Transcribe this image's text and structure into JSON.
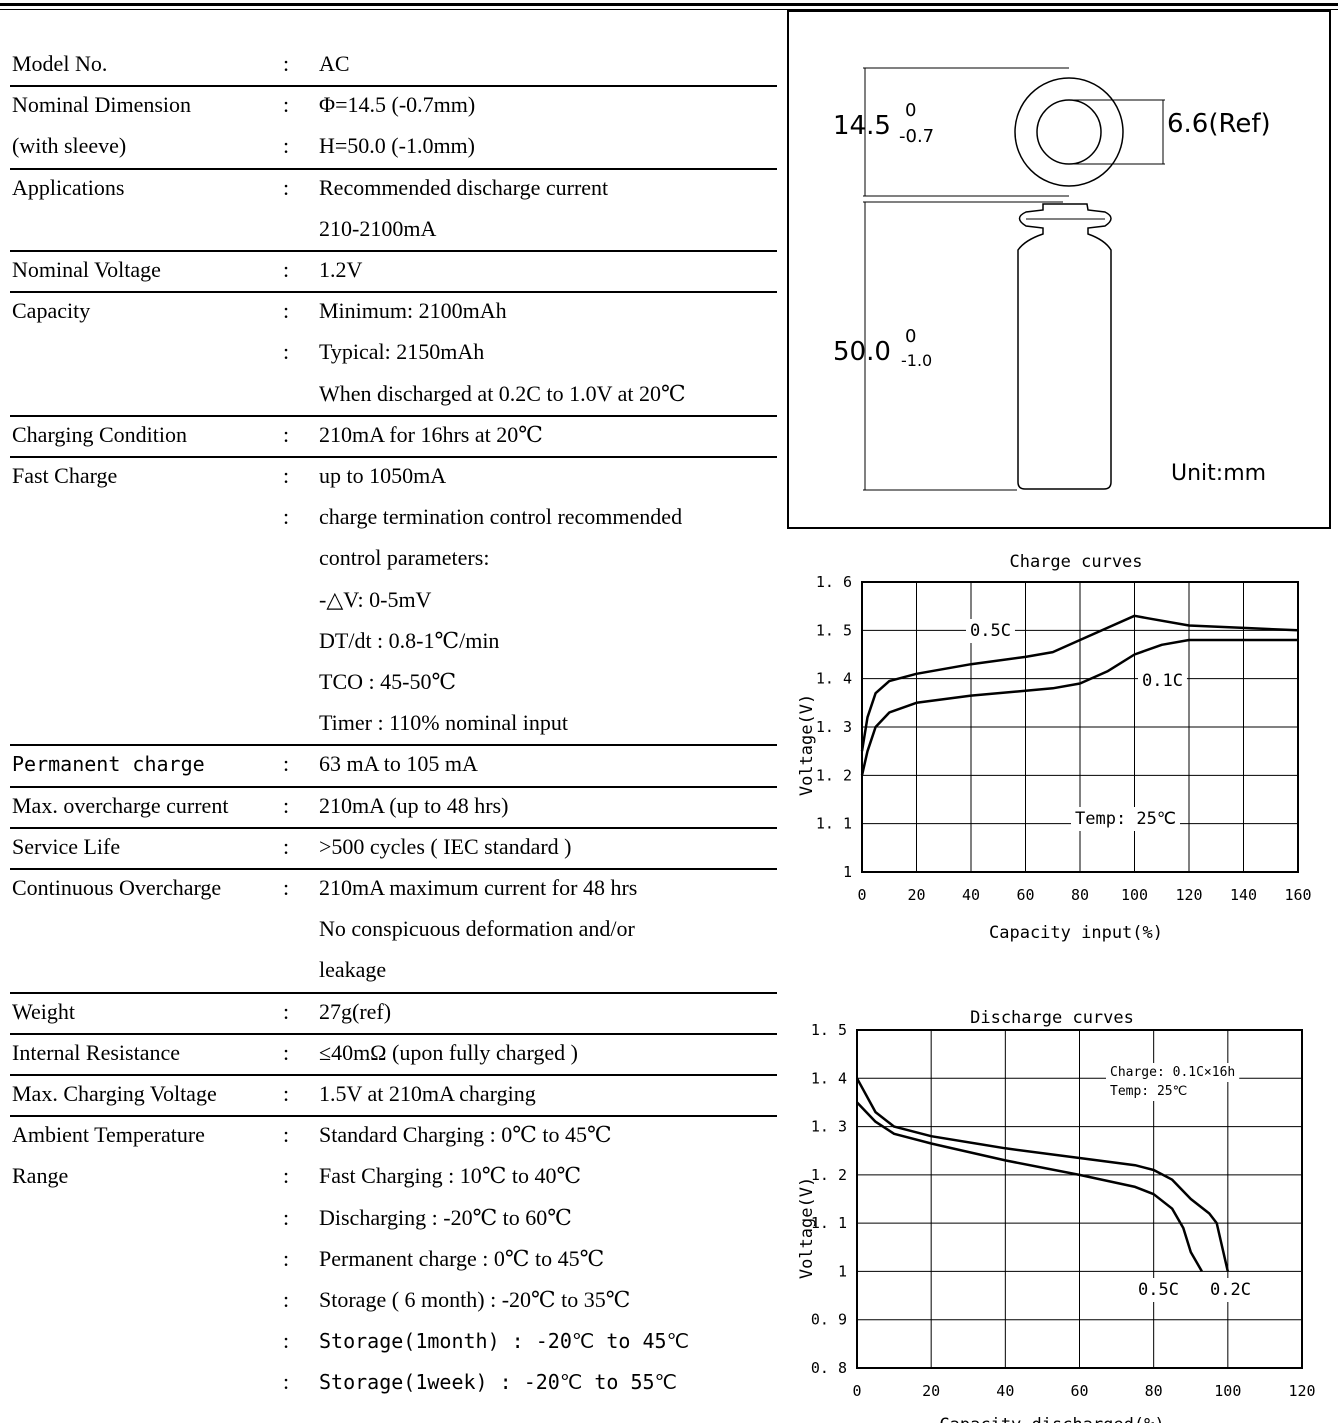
{
  "specs": [
    {
      "label": "Model No.",
      "lines": [
        {
          "colon": ":",
          "text": "AC"
        }
      ]
    },
    {
      "label": "Nominal Dimension",
      "lines": [
        {
          "colon": ":",
          "text": "Φ=14.5 (-0.7mm)"
        }
      ]
    },
    {
      "label": "(with sleeve)",
      "lines": [
        {
          "colon": ":",
          "text": "H=50.0 (-1.0mm)"
        }
      ]
    },
    {
      "label": "Applications",
      "lines": [
        {
          "colon": ":",
          "text": "Recommended discharge current"
        },
        {
          "colon": "",
          "text": "210-2100mA"
        }
      ]
    },
    {
      "label": "Nominal Voltage",
      "lines": [
        {
          "colon": ":",
          "text": "1.2V"
        }
      ]
    },
    {
      "label": "Capacity",
      "lines": [
        {
          "colon": ":",
          "text": "Minimum: 2100mAh"
        },
        {
          "colon": ":",
          "text": "Typical: 2150mAh"
        },
        {
          "colon": "",
          "text": "When discharged at 0.2C to 1.0V at 20℃"
        }
      ]
    },
    {
      "label": "Charging Condition",
      "lines": [
        {
          "colon": ":",
          "text": "210mA for 16hrs at 20℃"
        }
      ]
    },
    {
      "label": "Fast Charge",
      "lines": [
        {
          "colon": ":",
          "text": "up to 1050mA"
        },
        {
          "colon": ":",
          "text": "charge termination control recommended"
        },
        {
          "colon": "",
          "text": "control parameters:"
        },
        {
          "colon": "",
          "text": "-△V: 0-5mV"
        },
        {
          "colon": "",
          "text": "DT/dt : 0.8-1℃/min"
        },
        {
          "colon": "",
          "text": "TCO : 45-50℃"
        },
        {
          "colon": "",
          "text": "Timer : 110% nominal input"
        }
      ]
    },
    {
      "label": "Permanent charge",
      "lines": [
        {
          "colon": ":",
          "text": "63 mA to 105 mA"
        }
      ]
    },
    {
      "label": "Max. overcharge current",
      "lines": [
        {
          "colon": ":",
          "text": "210mA (up to 48 hrs)"
        }
      ]
    },
    {
      "label": "Service Life",
      "lines": [
        {
          "colon": ":",
          "text": ">500 cycles ( IEC standard )"
        }
      ]
    },
    {
      "label": "Continuous Overcharge",
      "lines": [
        {
          "colon": ":",
          "text": "210mA maximum current for 48 hrs"
        },
        {
          "colon": "",
          "text": "No conspicuous deformation and/or"
        },
        {
          "colon": "",
          "text": "leakage"
        }
      ]
    },
    {
      "label": "Weight",
      "lines": [
        {
          "colon": ":",
          "text": "27g(ref)"
        }
      ]
    },
    {
      "label": "Internal Resistance",
      "lines": [
        {
          "colon": ":",
          "text": "≤40mΩ (upon fully charged )"
        }
      ]
    },
    {
      "label": "Max. Charging Voltage",
      "lines": [
        {
          "colon": ":",
          "text": "1.5V at 210mA charging"
        }
      ]
    },
    {
      "label": "Ambient Temperature",
      "lines": [
        {
          "colon": ":",
          "text": "Standard Charging : 0℃ to 45℃"
        }
      ]
    },
    {
      "label": "Range",
      "lines": [
        {
          "colon": ":",
          "text": "Fast Charging : 10℃ to 40℃"
        },
        {
          "colon": ":",
          "text": "Discharging : -20℃ to 60℃"
        },
        {
          "colon": ":",
          "text": "Permanent charge : 0℃ to 45℃"
        },
        {
          "colon": ":",
          "text": "Storage ( 6 month) : -20℃ to 35℃"
        },
        {
          "colon": ":",
          "text": "Storage(1month) : -20℃ to 45℃"
        },
        {
          "colon": ":",
          "text": "Storage(1week) : -20℃ to 55℃"
        }
      ]
    }
  ],
  "dimension_drawing": {
    "diameter_main": "14.5",
    "diameter_sup": "0",
    "diameter_sub": "-0.7",
    "ref_label": "6.6(Ref)",
    "height_main": "50.0",
    "height_sup": "0",
    "height_sub": "-1.0",
    "unit_label": "Unit:mm"
  },
  "chart_data": [
    {
      "type": "line",
      "title": "Charge curves",
      "xlabel": "Capacity input(%)",
      "ylabel": "Voltage(V)",
      "xlim": [
        0,
        160
      ],
      "ylim": [
        1,
        1.6
      ],
      "xticks": [
        0,
        20,
        40,
        60,
        80,
        100,
        120,
        140,
        160
      ],
      "yticks": [
        1,
        1.1,
        1.2,
        1.3,
        1.4,
        1.5,
        1.6
      ],
      "grid": true,
      "series": [
        {
          "name": "0.5C",
          "x": [
            0,
            2,
            5,
            10,
            20,
            40,
            60,
            70,
            80,
            90,
            100,
            105,
            120,
            140,
            160
          ],
          "y": [
            1.25,
            1.32,
            1.37,
            1.395,
            1.41,
            1.43,
            1.445,
            1.455,
            1.48,
            1.505,
            1.53,
            1.525,
            1.51,
            1.505,
            1.5
          ]
        },
        {
          "name": "0.1C",
          "x": [
            0,
            2,
            5,
            10,
            20,
            40,
            60,
            70,
            80,
            90,
            100,
            110,
            120,
            140,
            160
          ],
          "y": [
            1.2,
            1.25,
            1.3,
            1.33,
            1.35,
            1.365,
            1.375,
            1.38,
            1.39,
            1.415,
            1.45,
            1.47,
            1.48,
            1.48,
            1.48
          ]
        }
      ],
      "annotations": [
        "0.5C",
        "0.1C",
        "Temp: 25℃"
      ]
    },
    {
      "type": "line",
      "title": "Discharge curves",
      "xlabel": "Capacity discharged(%)",
      "ylabel": "Voltage(V)",
      "xlim": [
        0,
        120
      ],
      "ylim": [
        0.8,
        1.5
      ],
      "xticks": [
        0,
        20,
        40,
        60,
        80,
        100,
        120
      ],
      "yticks": [
        0.8,
        0.9,
        1,
        1.1,
        1.2,
        1.3,
        1.4,
        1.5
      ],
      "grid": true,
      "series": [
        {
          "name": "0.2C",
          "x": [
            0,
            5,
            10,
            20,
            40,
            60,
            75,
            80,
            85,
            90,
            95,
            97,
            100
          ],
          "y": [
            1.4,
            1.33,
            1.3,
            1.28,
            1.255,
            1.235,
            1.22,
            1.21,
            1.19,
            1.15,
            1.12,
            1.1,
            1.0
          ]
        },
        {
          "name": "0.5C",
          "x": [
            0,
            5,
            10,
            20,
            40,
            60,
            75,
            80,
            85,
            88,
            90,
            93
          ],
          "y": [
            1.35,
            1.31,
            1.285,
            1.265,
            1.23,
            1.2,
            1.175,
            1.16,
            1.13,
            1.09,
            1.04,
            1.0
          ]
        }
      ],
      "annotations": [
        "Charge: 0.1C×16h",
        "Temp: 25℃",
        "0.5C",
        "0.2C"
      ]
    }
  ]
}
